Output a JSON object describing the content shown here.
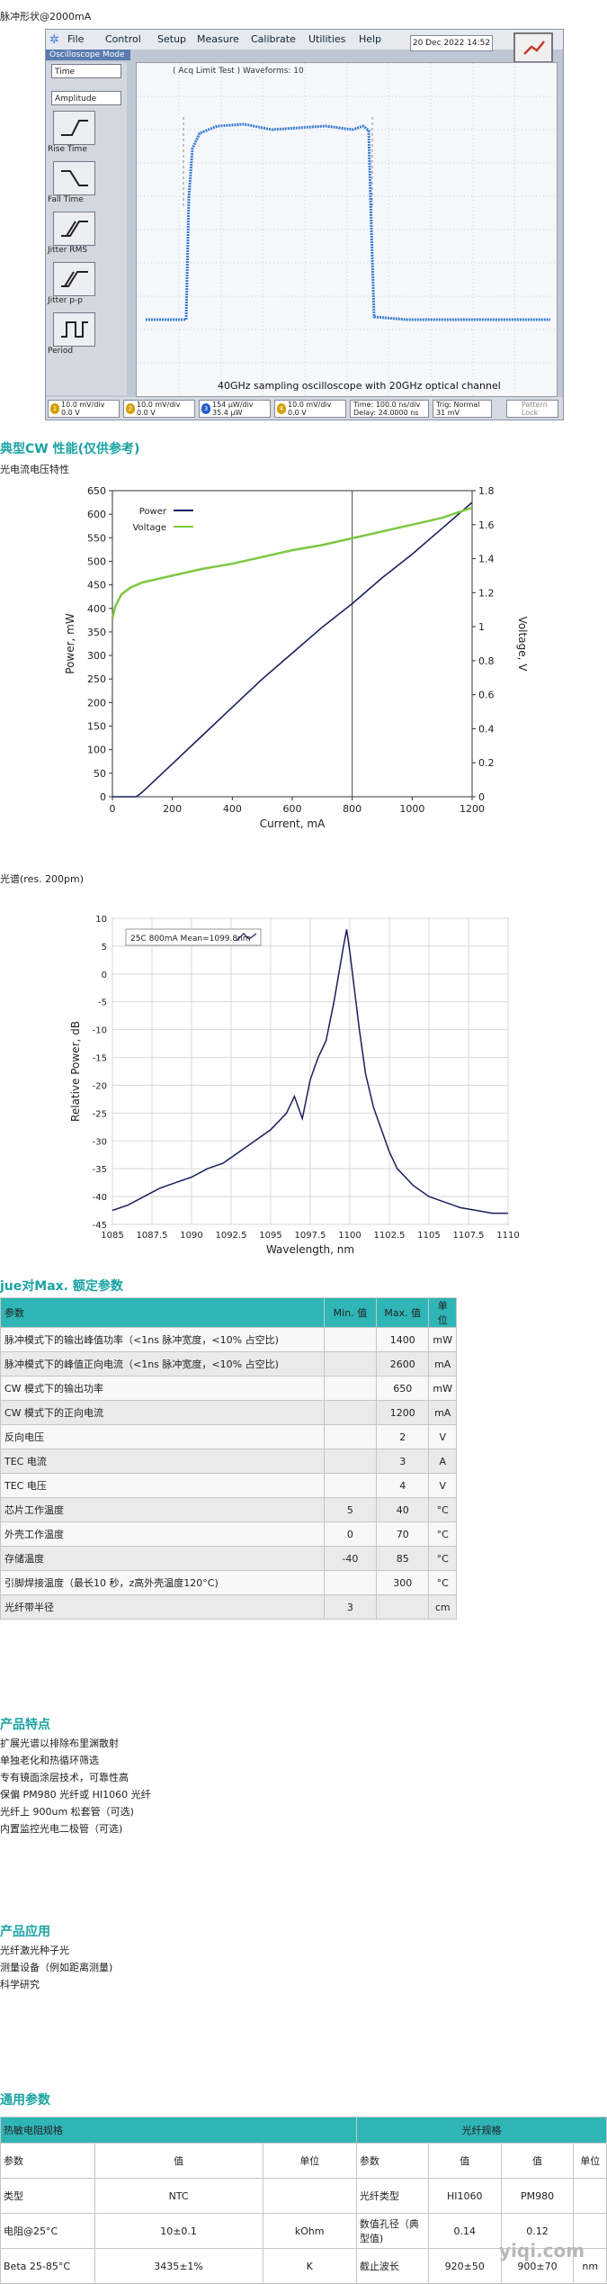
{
  "osc_caption": "脉冲形状@2000mA",
  "osc": {
    "menu": [
      "File",
      "Control",
      "Setup",
      "Measure",
      "Calibrate",
      "Utilities",
      "Help"
    ],
    "mode": "Oscilloscope Mode",
    "date": "20 Dec 2022   14:52",
    "sel1": "Time",
    "sel2": "Amplitude",
    "buttons": [
      "Rise Time",
      "Fall Time",
      "Jitter RMS",
      "Jitter p-p",
      "Period"
    ],
    "screen_title": "( Acq Limit Test )  Waveforms: 10",
    "screen_caption": "40GHz sampling oscilloscope with 20GHz optical channel",
    "footer": [
      {
        "n": "1",
        "l1": "10.0 mV/div",
        "l2": "0.0 V",
        "color": "#d4a000"
      },
      {
        "n": "2",
        "l1": "10.0 mV/div",
        "l2": "0.0 V",
        "color": "#d4a000"
      },
      {
        "n": "3",
        "l1": "154 µW/div",
        "l2": "35.4 µW",
        "color": "#1e5ec9"
      },
      {
        "n": "4",
        "l1": "10.0 mV/div",
        "l2": "0.0 V",
        "color": "#d4a000"
      }
    ],
    "time": {
      "l1": "Time: 100.0 ns/div",
      "l2": "Delay: 24.0000 ns"
    },
    "trig": {
      "l1": "Trig: Normal",
      "l2": "31 mV"
    },
    "pattern": {
      "l1": "Pattern",
      "l2": "Lock"
    }
  },
  "cw_title": "典型CW 性能(仅供参考)",
  "cw_caption": "光电流电压特性",
  "spec_caption": "光谱(res. 200pm)",
  "chart_data": [
    {
      "type": "line",
      "title": "",
      "xlabel": "Current, mA",
      "ylabel": "Power, mW",
      "y2label": "Voltage, V",
      "xlim": [
        0,
        1200
      ],
      "ylim": [
        0,
        650
      ],
      "y2lim": [
        0,
        1.8
      ],
      "xticks": [
        "0",
        "200",
        "400",
        "600",
        "800",
        "1000",
        "1200"
      ],
      "yticks": [
        "0",
        "50",
        "100",
        "150",
        "200",
        "250",
        "300",
        "350",
        "400",
        "450",
        "500",
        "550",
        "600",
        "650"
      ],
      "y2ticks": [
        "0",
        "0.2",
        "0.4",
        "0.6",
        "0.8",
        "1",
        "1.2",
        "1.4",
        "1.6",
        "1.8"
      ],
      "marker_x": 800,
      "legend": "top-left",
      "series": [
        {
          "name": "Power",
          "axis": "left",
          "color": "#1a1f5e",
          "x": [
            0,
            80,
            100,
            200,
            300,
            400,
            500,
            600,
            700,
            800,
            900,
            1000,
            1100,
            1200
          ],
          "y": [
            0,
            0,
            10,
            70,
            130,
            190,
            250,
            305,
            360,
            410,
            465,
            515,
            570,
            625
          ]
        },
        {
          "name": "Voltage",
          "axis": "right",
          "color": "#7dc842",
          "x": [
            0,
            10,
            30,
            60,
            100,
            150,
            200,
            300,
            400,
            500,
            600,
            700,
            800,
            900,
            1000,
            1100,
            1200
          ],
          "y": [
            1.05,
            1.12,
            1.19,
            1.23,
            1.26,
            1.28,
            1.3,
            1.34,
            1.37,
            1.41,
            1.45,
            1.48,
            1.52,
            1.56,
            1.6,
            1.64,
            1.7
          ]
        }
      ]
    },
    {
      "type": "line",
      "title": "",
      "xlabel": "Wavelength, nm",
      "ylabel": "Relative Power, dB",
      "xlim": [
        1085,
        1110
      ],
      "ylim": [
        -45,
        10
      ],
      "xticks": [
        "1085",
        "1087.5",
        "1090",
        "1092.5",
        "1095",
        "1097.5",
        "1100",
        "1102.5",
        "1105",
        "1107.5",
        "1110"
      ],
      "yticks": [
        "10",
        "5",
        "0",
        "-5",
        "-10",
        "-15",
        "-20",
        "-25",
        "-30",
        "-35",
        "-40",
        "-45"
      ],
      "legend": "top-left",
      "series": [
        {
          "name": "25C 800mA Mean=1099.8nm",
          "color": "#1a1f5e",
          "x": [
            1085,
            1086,
            1087,
            1088,
            1089,
            1090,
            1091,
            1092,
            1093,
            1094,
            1095,
            1096,
            1096.5,
            1097,
            1097.5,
            1098,
            1098.5,
            1099,
            1099.3,
            1099.6,
            1099.8,
            1100,
            1100.3,
            1100.6,
            1101,
            1101.5,
            1102,
            1102.5,
            1103,
            1104,
            1105,
            1106,
            1107,
            1108,
            1109,
            1110
          ],
          "y": [
            -42.5,
            -41.5,
            -40,
            -38.5,
            -37.5,
            -36.5,
            -35,
            -34,
            -32,
            -30,
            -28,
            -25,
            -22,
            -26,
            -19,
            -15,
            -12,
            -5,
            0,
            5,
            8,
            4,
            -3,
            -10,
            -18,
            -24,
            -28,
            -32,
            -35,
            -38,
            -40,
            -41,
            -42,
            -42.5,
            -43,
            -43
          ]
        }
      ]
    }
  ],
  "ratings": {
    "title": "jue对Max. 额定参数",
    "header": [
      "参数",
      "Min. 值",
      "Max. 值",
      "单位"
    ],
    "rows": [
      [
        "脉冲模式下的输出峰值功率（<1ns 脉冲宽度，<10% 占空比)",
        "",
        "1400",
        "mW"
      ],
      [
        "脉冲模式下的峰值正向电流（<1ns 脉冲宽度，<10% 占空比)",
        "",
        "2600",
        "mA"
      ],
      [
        "CW 模式下的输出功率",
        "",
        "650",
        "mW"
      ],
      [
        "CW 模式下的正向电流",
        "",
        "1200",
        "mA"
      ],
      [
        "反向电压",
        "",
        "2",
        "V"
      ],
      [
        "TEC 电流",
        "",
        "3",
        "A"
      ],
      [
        "TEC 电压",
        "",
        "4",
        "V"
      ],
      [
        "芯片工作温度",
        "5",
        "40",
        "°C"
      ],
      [
        "外壳工作温度",
        "0",
        "70",
        "°C"
      ],
      [
        "存储温度",
        "-40",
        "85",
        "°C"
      ],
      [
        "引脚焊接温度（最长10 秒，z高外壳温度120°C)",
        "",
        "300",
        "°C"
      ],
      [
        "光纤带半径",
        "3",
        "",
        "cm"
      ]
    ]
  },
  "features": {
    "title": "产品特点",
    "items": [
      "扩展光谱以排除布里渊散射",
      "单独老化和热循环筛选",
      "专有镜面涂层技术，可靠性高",
      "保偏 PM980 光纤或 HI1060 光纤",
      "光纤上 900um 松套管（可选)",
      "内置监控光电二极管（可选)"
    ]
  },
  "apps": {
    "title": "产品应用",
    "items": [
      "光纤激光种子光",
      "测量设备（例如距离测量)",
      "科学研究"
    ]
  },
  "general": {
    "title": "通用参数",
    "group_left": "热敏电阻规格",
    "group_right": "光纤规格",
    "header": [
      "参数",
      "值",
      "单位",
      "参数",
      "值",
      "值",
      "单位"
    ],
    "rows": [
      [
        "类型",
        "NTC",
        "",
        "光纤类型",
        "HI1060",
        "PM980",
        ""
      ],
      [
        "电阻@25°C",
        "10±0.1",
        "kOhm",
        "数值孔径（典型值)",
        "0.14",
        "0.12",
        ""
      ],
      [
        "Beta 25-85°C",
        "3435±1%",
        "K",
        "截止波长",
        "920±50",
        "900±70",
        "nm"
      ]
    ]
  },
  "watermark": "yiqi.com"
}
